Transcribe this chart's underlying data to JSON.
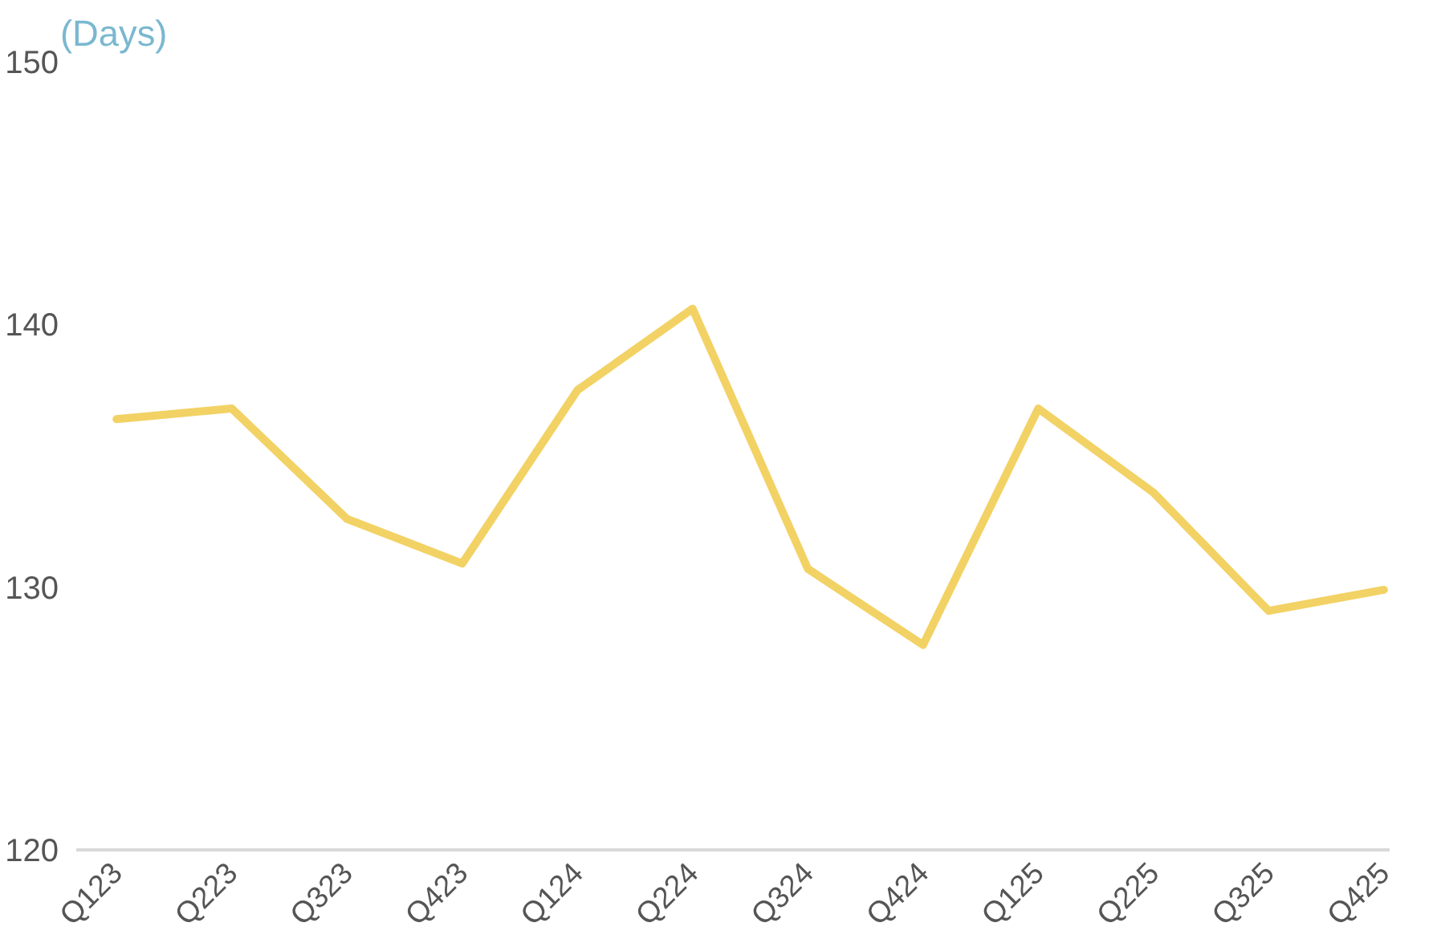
{
  "chart_data": {
    "type": "line",
    "ylabel": "(Days)",
    "categories": [
      "Q123",
      "Q223",
      "Q323",
      "Q423",
      "Q124",
      "Q224",
      "Q324",
      "Q424",
      "Q125",
      "Q225",
      "Q325",
      "Q425"
    ],
    "series": [
      {
        "color": "#f2d264",
        "values": [
          136.4,
          136.8,
          132.6,
          130.9,
          137.5,
          140.6,
          130.7,
          127.8,
          136.8,
          133.6,
          129.1,
          129.9
        ]
      }
    ],
    "ylim": [
      120,
      150
    ],
    "yticks": [
      120,
      130,
      140,
      150
    ],
    "grid": false
  }
}
